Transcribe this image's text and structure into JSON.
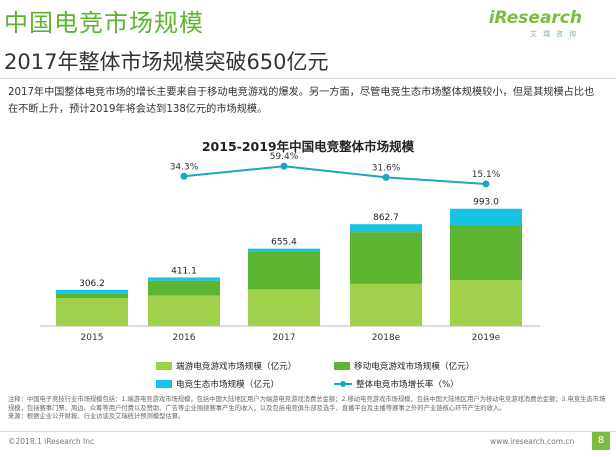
{
  "header": {
    "title": "中国电竞市场规模",
    "subtitle": "2017年整体市场规模突破650亿元",
    "logo_word": "iResearch",
    "logo_sub": "艾瑞咨询"
  },
  "intro": "2017年中国整体电竞市场的增长主要来自于移动电竞游戏的爆发。另一方面，尽管电竞生态市场整体规模较小，但是其规模占比也在不断上升，预计2019年将会达到138亿元的市场规模。",
  "chart_data": {
    "type": "bar",
    "title": "2015-2019年中国电竞整体市场规模",
    "categories": [
      "2015",
      "2016",
      "2017",
      "2018e",
      "2019e"
    ],
    "series": [
      {
        "name": "端游电竞游戏市场规模（亿元）",
        "color": "#9ed04a",
        "values": [
          235,
          259,
          310,
          357,
          388
        ]
      },
      {
        "name": "移动电竞游戏市场规模（亿元）",
        "color": "#5cb531",
        "values": [
          41,
          125,
          320,
          438,
          467
        ]
      },
      {
        "name": "电竞生态市场规模（亿元）",
        "color": "#19c3e3",
        "values": [
          30,
          27,
          25,
          67,
          138
        ]
      }
    ],
    "totals": [
      306.2,
      411.1,
      655.4,
      862.7,
      993.0
    ],
    "total_labels": [
      "306.2",
      "411.1",
      "655.4",
      "862.7",
      "993.0"
    ],
    "growth_rate": {
      "name": "整体电竞市场增长率（%）",
      "color": "#1aa6c6",
      "values": [
        null,
        34.3,
        59.4,
        31.6,
        15.1
      ],
      "labels": [
        "",
        "34.3%",
        "59.4%",
        "31.6%",
        "15.1%"
      ]
    },
    "ylim": [
      0,
      1100
    ]
  },
  "legend": {
    "pc": "端游电竞游戏市场规模（亿元）",
    "mobile": "移动电竞游戏市场规模（亿元）",
    "eco": "电竞生态市场规模（亿元）",
    "growth": "整体电竞市场增长率（%）"
  },
  "notes": {
    "line1": "注释：中国电子竞技行业市场规模包括：1.端游电竞游戏市场规模，包括中国大陆地区用户为端游电竞游戏消费总金额；2.移动电竞游戏市场规模，包括中国大陆地区用户为移动电竞游戏消费总金额；3.电竞生态市场规模，包括赛事门票、周边、众筹等用户付费以及赞助、广告等企业围绕赛事产生的收入，以及包括电竞俱乐部及选手、直播平台及主播等赛事之外的产业链核心环节产生的收入。",
    "line2": "来源：根据企业公开财报、行业访谈及艾瑞统计预测模型估算。"
  },
  "footer": {
    "copyright": "©2018.1 iResearch Inc",
    "website": "www.iresearch.com.cn",
    "page": "8"
  }
}
